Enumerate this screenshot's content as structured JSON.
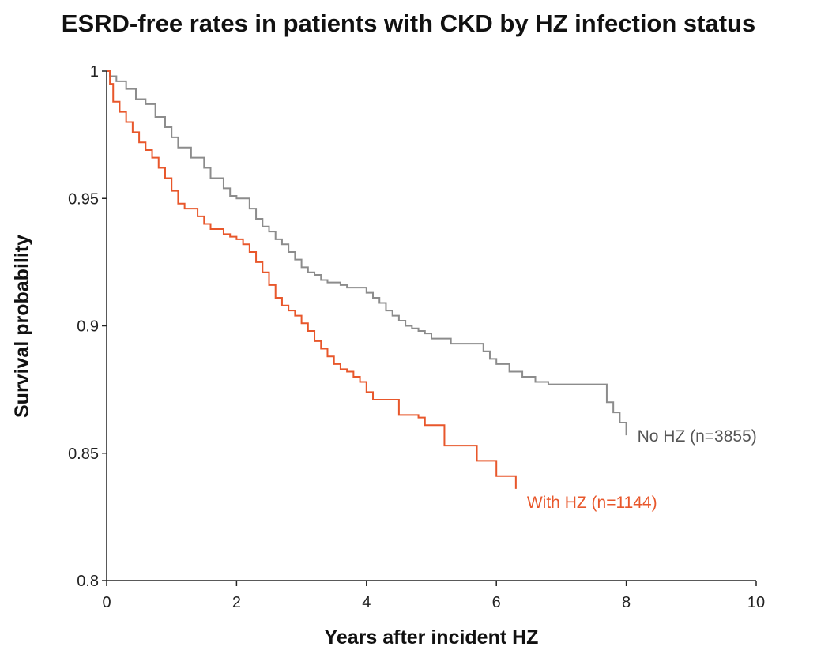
{
  "chart_data": {
    "type": "line",
    "title": "ESRD-free rates in patients with CKD by HZ infection status",
    "xlabel": "Years after incident HZ",
    "ylabel": "Survival probability",
    "xlim": [
      0,
      10
    ],
    "ylim": [
      0.8,
      1
    ],
    "x_ticks": [
      "0",
      "2",
      "4",
      "6",
      "8",
      "10"
    ],
    "y_ticks": [
      "0.8",
      "0.85",
      "0.9",
      "0.95",
      "1"
    ],
    "grid": false,
    "step": true,
    "series": [
      {
        "name": "No HZ (n=3855)",
        "color": "#8c8c8c",
        "points": [
          [
            0,
            1.0
          ],
          [
            0.05,
            0.998
          ],
          [
            0.15,
            0.996
          ],
          [
            0.3,
            0.993
          ],
          [
            0.45,
            0.989
          ],
          [
            0.6,
            0.987
          ],
          [
            0.75,
            0.982
          ],
          [
            0.9,
            0.978
          ],
          [
            1.0,
            0.974
          ],
          [
            1.1,
            0.97
          ],
          [
            1.3,
            0.966
          ],
          [
            1.5,
            0.962
          ],
          [
            1.6,
            0.958
          ],
          [
            1.8,
            0.954
          ],
          [
            1.9,
            0.951
          ],
          [
            2.0,
            0.95
          ],
          [
            2.2,
            0.946
          ],
          [
            2.3,
            0.942
          ],
          [
            2.4,
            0.939
          ],
          [
            2.5,
            0.937
          ],
          [
            2.6,
            0.934
          ],
          [
            2.7,
            0.932
          ],
          [
            2.8,
            0.929
          ],
          [
            2.9,
            0.926
          ],
          [
            3.0,
            0.923
          ],
          [
            3.1,
            0.921
          ],
          [
            3.2,
            0.92
          ],
          [
            3.3,
            0.918
          ],
          [
            3.4,
            0.917
          ],
          [
            3.6,
            0.916
          ],
          [
            3.7,
            0.915
          ],
          [
            4.0,
            0.913
          ],
          [
            4.1,
            0.911
          ],
          [
            4.2,
            0.909
          ],
          [
            4.3,
            0.906
          ],
          [
            4.4,
            0.904
          ],
          [
            4.5,
            0.902
          ],
          [
            4.6,
            0.9
          ],
          [
            4.7,
            0.899
          ],
          [
            4.8,
            0.898
          ],
          [
            4.9,
            0.897
          ],
          [
            5.0,
            0.895
          ],
          [
            5.3,
            0.893
          ],
          [
            5.8,
            0.89
          ],
          [
            5.9,
            0.887
          ],
          [
            6.0,
            0.885
          ],
          [
            6.2,
            0.882
          ],
          [
            6.4,
            0.88
          ],
          [
            6.6,
            0.878
          ],
          [
            6.8,
            0.877
          ],
          [
            7.0,
            0.877
          ],
          [
            7.6,
            0.877
          ],
          [
            7.7,
            0.87
          ],
          [
            7.8,
            0.866
          ],
          [
            7.9,
            0.862
          ],
          [
            8.0,
            0.857
          ]
        ]
      },
      {
        "name": "With HZ (n=1144)",
        "color": "#e8572b",
        "points": [
          [
            0,
            1.0
          ],
          [
            0.05,
            0.995
          ],
          [
            0.1,
            0.988
          ],
          [
            0.2,
            0.984
          ],
          [
            0.3,
            0.98
          ],
          [
            0.4,
            0.976
          ],
          [
            0.5,
            0.972
          ],
          [
            0.6,
            0.969
          ],
          [
            0.7,
            0.966
          ],
          [
            0.8,
            0.962
          ],
          [
            0.9,
            0.958
          ],
          [
            1.0,
            0.953
          ],
          [
            1.1,
            0.948
          ],
          [
            1.2,
            0.946
          ],
          [
            1.4,
            0.943
          ],
          [
            1.5,
            0.94
          ],
          [
            1.6,
            0.938
          ],
          [
            1.8,
            0.936
          ],
          [
            1.9,
            0.935
          ],
          [
            2.0,
            0.934
          ],
          [
            2.1,
            0.932
          ],
          [
            2.2,
            0.929
          ],
          [
            2.3,
            0.925
          ],
          [
            2.4,
            0.921
          ],
          [
            2.5,
            0.916
          ],
          [
            2.6,
            0.911
          ],
          [
            2.7,
            0.908
          ],
          [
            2.8,
            0.906
          ],
          [
            2.9,
            0.904
          ],
          [
            3.0,
            0.901
          ],
          [
            3.1,
            0.898
          ],
          [
            3.2,
            0.894
          ],
          [
            3.3,
            0.891
          ],
          [
            3.4,
            0.888
          ],
          [
            3.5,
            0.885
          ],
          [
            3.6,
            0.883
          ],
          [
            3.7,
            0.882
          ],
          [
            3.8,
            0.88
          ],
          [
            3.9,
            0.878
          ],
          [
            4.0,
            0.874
          ],
          [
            4.1,
            0.871
          ],
          [
            4.2,
            0.871
          ],
          [
            4.5,
            0.865
          ],
          [
            4.6,
            0.865
          ],
          [
            4.8,
            0.864
          ],
          [
            4.9,
            0.861
          ],
          [
            5.1,
            0.861
          ],
          [
            5.2,
            0.853
          ],
          [
            5.7,
            0.847
          ],
          [
            6.0,
            0.841
          ],
          [
            6.2,
            0.841
          ],
          [
            6.3,
            0.836
          ]
        ]
      }
    ]
  }
}
